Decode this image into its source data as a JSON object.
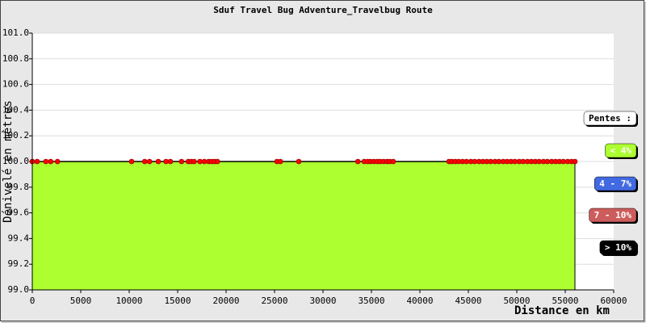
{
  "chart_data": {
    "type": "area",
    "title": "Sduf Travel Bug Adventure_Travelbug Route",
    "y_label": "Dénivelé en mètres",
    "x_label": "Distance en km",
    "x": [
      0,
      500,
      1400,
      1900,
      2600,
      10250,
      11600,
      12100,
      13000,
      13800,
      14250,
      15400,
      16100,
      16400,
      16700,
      17300,
      17750,
      18200,
      18500,
      18800,
      19100,
      25250,
      25600,
      27500,
      33600,
      34250,
      34600,
      34900,
      35250,
      35600,
      35900,
      36250,
      36600,
      36900,
      37250,
      43000,
      43300,
      43650,
      44000,
      44400,
      44800,
      45250,
      45650,
      46100,
      46500,
      46900,
      47300,
      47750,
      48150,
      48600,
      49000,
      49400,
      49800,
      50250,
      50650,
      51100,
      51500,
      51900,
      52300,
      52750,
      53150,
      53600,
      54000,
      54400,
      54800,
      55250,
      55650,
      56000
    ],
    "values": [
      100,
      100,
      100,
      100,
      100,
      100,
      100,
      100,
      100,
      100,
      100,
      100,
      100,
      100,
      100,
      100,
      100,
      100,
      100,
      100,
      100,
      100,
      100,
      100,
      100,
      100,
      100,
      100,
      100,
      100,
      100,
      100,
      100,
      100,
      100,
      100,
      100,
      100,
      100,
      100,
      100,
      100,
      100,
      100,
      100,
      100,
      100,
      100,
      100,
      100,
      100,
      100,
      100,
      100,
      100,
      100,
      100,
      100,
      100,
      100,
      100,
      100,
      100,
      100,
      100,
      100,
      100,
      100
    ],
    "color": "#adff2f",
    "marker_color": "#ff0000",
    "xlim": [
      0,
      60000
    ],
    "xticks": [
      0,
      5000,
      10000,
      15000,
      20000,
      25000,
      30000,
      35000,
      40000,
      45000,
      50000,
      55000,
      60000
    ],
    "ylim": [
      99,
      101
    ],
    "yticks": [
      {
        "value": 99,
        "label": "99.0"
      },
      {
        "value": 99.2,
        "label": "99.2"
      },
      {
        "value": 99.4,
        "label": "99.4"
      },
      {
        "value": 99.6,
        "label": "99.6"
      },
      {
        "value": 99.8,
        "label": "99.8"
      },
      {
        "value": 100,
        "label": "100.0"
      },
      {
        "value": 100.2,
        "label": "100.2"
      },
      {
        "value": 100.4,
        "label": "100.4"
      },
      {
        "value": 100.6,
        "label": "100.6"
      },
      {
        "value": 100.8,
        "label": "100.8"
      },
      {
        "value": 101,
        "label": "101.0"
      }
    ],
    "grid": true,
    "legend": {
      "title": "Pentes :",
      "items": [
        {
          "label": "< 4%",
          "color": "#adff2f"
        },
        {
          "label": "4 - 7%",
          "color": "#4169e1"
        },
        {
          "label": "7 - 10%",
          "color": "#cd5c5c"
        },
        {
          "label": "> 10%",
          "color": "#000000"
        }
      ]
    }
  }
}
